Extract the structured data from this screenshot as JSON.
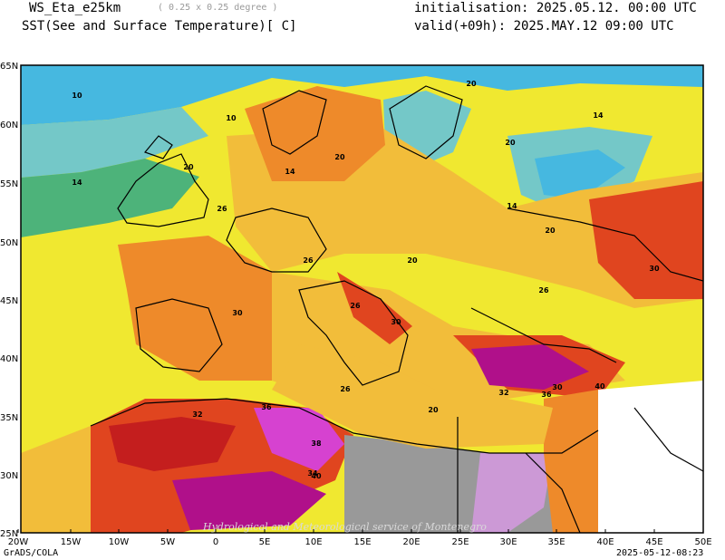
{
  "header": {
    "model": "WS_Eta_e25km",
    "resolution": "( 0.25 x 0.25 degree )",
    "field": "SST(See and Surface Temperature)[ C]",
    "init": "initialisation: 2025.05.12. 00:00 UTC",
    "valid": "valid(+09h): 2025.MAY.12 09:00 UTC"
  },
  "footer": {
    "left": "GrADS/COLA",
    "right": "2025-05-12-08:23"
  },
  "watermark": "Hydrological and Meteorological service of Montenegro",
  "map": {
    "lon_labels": [
      "20W",
      "15W",
      "10W",
      "5W",
      "0",
      "5E",
      "10E",
      "15E",
      "20E",
      "25E",
      "30E",
      "35E",
      "40E",
      "45E",
      "50E"
    ],
    "lat_labels": [
      "65N",
      "60N",
      "55N",
      "50N",
      "45N",
      "40N",
      "35N",
      "30N",
      "25N"
    ],
    "contour_labels": [
      "10",
      "10",
      "14",
      "14",
      "20",
      "20",
      "26",
      "26",
      "30",
      "30",
      "32",
      "34",
      "36",
      "38",
      "40",
      "20",
      "14",
      "20",
      "26",
      "30",
      "20",
      "14",
      "20",
      "26",
      "30",
      "32",
      "36",
      "40",
      "26",
      "20"
    ],
    "palette": {
      "t10": "#46b8e0",
      "t14": "#74c8c8",
      "t17": "#4db37a",
      "t20": "#f0e830",
      "t24": "#f2bd3a",
      "t26": "#ee8a2a",
      "t28": "#e0451f",
      "t30": "#c41e1e",
      "t34": "#b0108a",
      "t38": "#d642d0",
      "t40": "#cc99d6",
      "land_dry": "#999999"
    }
  }
}
